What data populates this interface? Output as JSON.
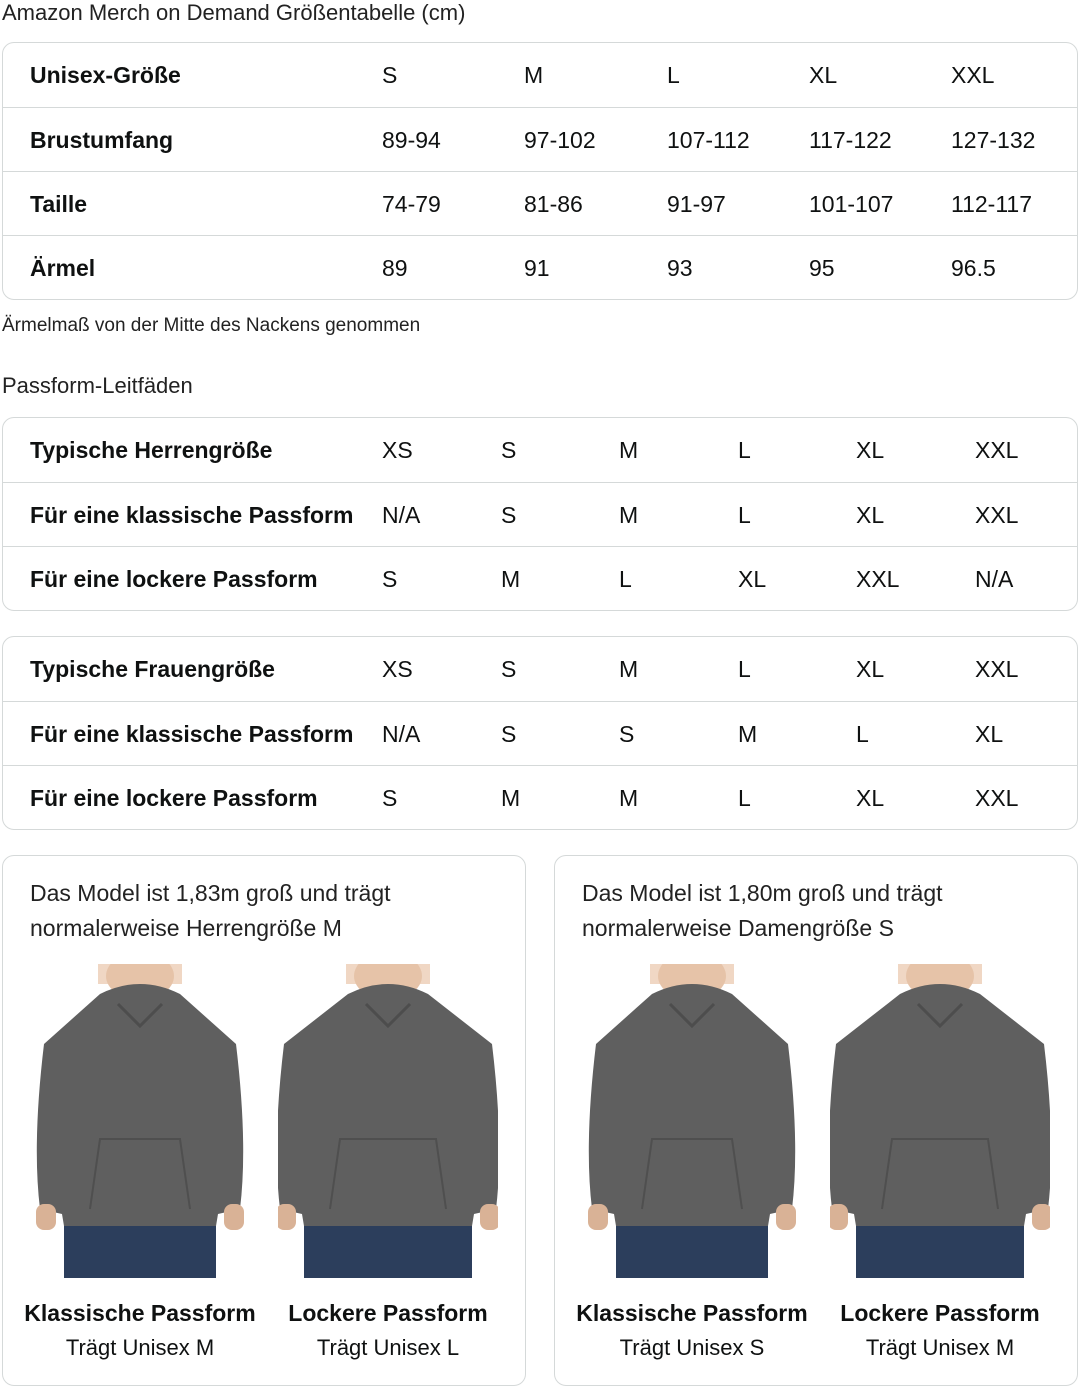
{
  "title": "Amazon Merch on Demand Größentabelle (cm)",
  "size_table": {
    "rows": [
      {
        "label": "Unisex-Größe",
        "values": [
          "S",
          "M",
          "L",
          "XL",
          "XXL"
        ]
      },
      {
        "label": "Brustumfang",
        "values": [
          "89-94",
          "97-102",
          "107-112",
          "117-122",
          "127-132"
        ]
      },
      {
        "label": "Taille",
        "values": [
          "74-79",
          "81-86",
          "91-97",
          "101-107",
          "112-117"
        ]
      },
      {
        "label": "Ärmel",
        "values": [
          "89",
          "91",
          "93",
          "95",
          "96.5"
        ]
      }
    ]
  },
  "note": "Ärmelmaß von der Mitte des Nackens genommen",
  "fit_title": "Passform-Leitfäden",
  "men_table": {
    "rows": [
      {
        "label": "Typische Herrengröße",
        "values": [
          "XS",
          "S",
          "M",
          "L",
          "XL",
          "XXL"
        ]
      },
      {
        "label": "Für eine klassische Passform",
        "values": [
          "N/A",
          "S",
          "M",
          "L",
          "XL",
          "XXL"
        ]
      },
      {
        "label": "Für eine lockere Passform",
        "values": [
          "S",
          "M",
          "L",
          "XL",
          "XXL",
          "N/A"
        ]
      }
    ]
  },
  "women_table": {
    "rows": [
      {
        "label": "Typische Frauengröße",
        "values": [
          "XS",
          "S",
          "M",
          "L",
          "XL",
          "XXL"
        ]
      },
      {
        "label": "Für eine klassische Passform",
        "values": [
          "N/A",
          "S",
          "S",
          "M",
          "L",
          "XL"
        ]
      },
      {
        "label": "Für eine lockere Passform",
        "values": [
          "S",
          "M",
          "M",
          "L",
          "XL",
          "XXL"
        ]
      }
    ]
  },
  "cards": [
    {
      "caption_1": "Das Model ist 1,83m groß und trägt",
      "caption_2": "normalerweise Herrengröße M",
      "figures": [
        {
          "fit": "Klassische Passform",
          "wears": "Trägt Unisex M"
        },
        {
          "fit": "Lockere Passform",
          "wears": "Trägt Unisex L"
        }
      ]
    },
    {
      "caption_1": "Das Model ist 1,80m groß und trägt",
      "caption_2": "normalerweise Damengröße S",
      "figures": [
        {
          "fit": "Klassische Passform",
          "wears": "Trägt Unisex S"
        },
        {
          "fit": "Lockere Passform",
          "wears": "Trägt Unisex M"
        }
      ]
    }
  ],
  "colors": {
    "hoodie": "#5f5f5f",
    "jeans": "#2c3e5c",
    "border": "#d5d9d9"
  }
}
